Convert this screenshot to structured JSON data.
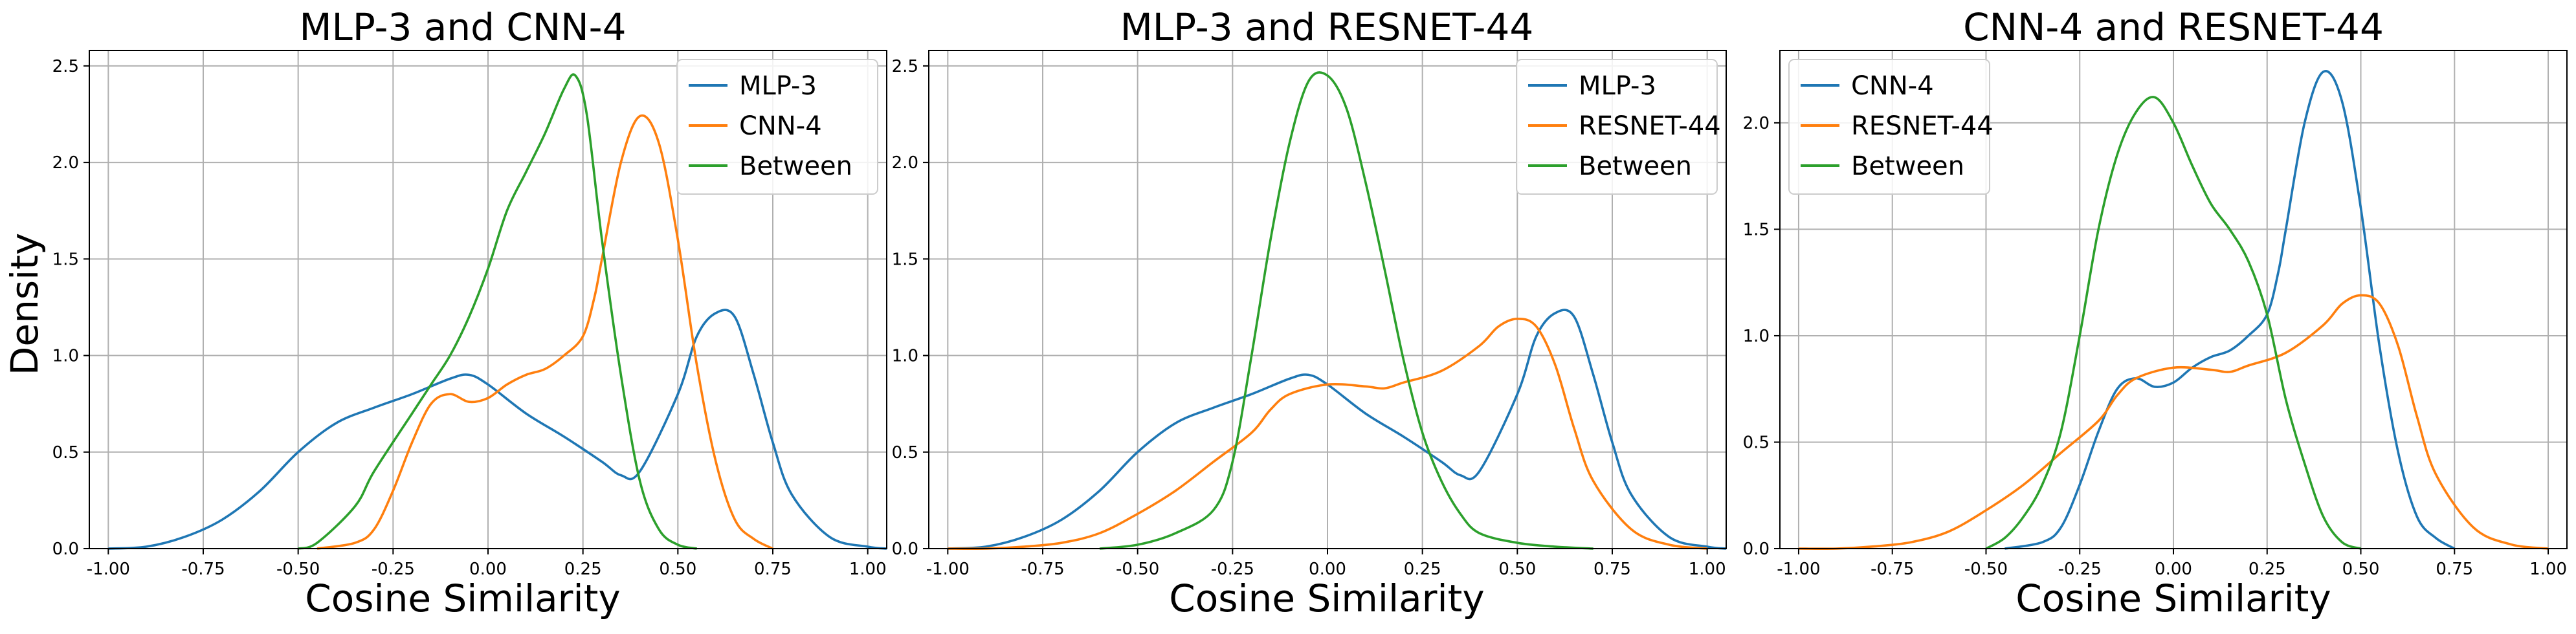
{
  "figure": {
    "ylabel": "Density"
  },
  "chart_data": [
    {
      "type": "line",
      "title": "MLP-3 and CNN-4",
      "xlabel": "Cosine Similarity",
      "ylabel": "Density",
      "xlim": [
        -1.05,
        1.05
      ],
      "ylim": [
        0,
        2.58
      ],
      "xticks": [
        -1.0,
        -0.75,
        -0.5,
        -0.25,
        0.0,
        0.25,
        0.5,
        0.75,
        1.0
      ],
      "xtick_labels": [
        "-1.00",
        "-0.75",
        "-0.50",
        "-0.25",
        "0.00",
        "0.25",
        "0.50",
        "0.75",
        "1.00"
      ],
      "yticks": [
        0,
        0.5,
        1.0,
        1.5,
        2.0,
        2.5
      ],
      "ytick_labels": [
        "0.0",
        "0.5",
        "1.0",
        "1.5",
        "2.0",
        "2.5"
      ],
      "grid": true,
      "legend": "top-right",
      "series": [
        {
          "name": "MLP-3",
          "color": "#1f77b4",
          "x": [
            -1.0,
            -0.9,
            -0.8,
            -0.7,
            -0.6,
            -0.5,
            -0.4,
            -0.3,
            -0.2,
            -0.1,
            -0.05,
            0.0,
            0.1,
            0.2,
            0.3,
            0.35,
            0.4,
            0.5,
            0.55,
            0.6,
            0.65,
            0.7,
            0.75,
            0.8,
            0.9,
            1.0,
            1.05
          ],
          "y": [
            0.0,
            0.01,
            0.06,
            0.15,
            0.3,
            0.5,
            0.65,
            0.73,
            0.8,
            0.88,
            0.9,
            0.85,
            0.7,
            0.58,
            0.45,
            0.38,
            0.4,
            0.8,
            1.1,
            1.22,
            1.2,
            0.9,
            0.55,
            0.28,
            0.06,
            0.01,
            0.0
          ]
        },
        {
          "name": "CNN-4",
          "color": "#ff7f0e",
          "x": [
            -0.45,
            -0.35,
            -0.3,
            -0.25,
            -0.2,
            -0.15,
            -0.1,
            -0.05,
            0.0,
            0.05,
            0.1,
            0.15,
            0.2,
            0.25,
            0.28,
            0.3,
            0.35,
            0.4,
            0.45,
            0.5,
            0.55,
            0.6,
            0.65,
            0.7,
            0.75
          ],
          "y": [
            0.0,
            0.03,
            0.1,
            0.3,
            0.55,
            0.75,
            0.8,
            0.76,
            0.78,
            0.85,
            0.9,
            0.93,
            1.0,
            1.1,
            1.3,
            1.5,
            2.0,
            2.24,
            2.1,
            1.6,
            0.95,
            0.45,
            0.15,
            0.05,
            0.0
          ]
        },
        {
          "name": "Between",
          "color": "#2ca02c",
          "x": [
            -0.5,
            -0.45,
            -0.35,
            -0.3,
            -0.2,
            -0.15,
            -0.1,
            -0.05,
            0.0,
            0.05,
            0.1,
            0.15,
            0.2,
            0.23,
            0.26,
            0.3,
            0.35,
            0.4,
            0.45,
            0.5,
            0.55
          ],
          "y": [
            0.0,
            0.03,
            0.22,
            0.4,
            0.7,
            0.85,
            1.0,
            1.2,
            1.45,
            1.75,
            1.95,
            2.15,
            2.38,
            2.45,
            2.25,
            1.6,
            0.9,
            0.35,
            0.1,
            0.02,
            0.0
          ]
        }
      ]
    },
    {
      "type": "line",
      "title": "MLP-3 and RESNET-44",
      "xlabel": "Cosine Similarity",
      "ylabel": "",
      "xlim": [
        -1.05,
        1.05
      ],
      "ylim": [
        0,
        2.58
      ],
      "xticks": [
        -1.0,
        -0.75,
        -0.5,
        -0.25,
        0.0,
        0.25,
        0.5,
        0.75,
        1.0
      ],
      "xtick_labels": [
        "-1.00",
        "-0.75",
        "-0.50",
        "-0.25",
        "0.00",
        "0.25",
        "0.50",
        "0.75",
        "1.00"
      ],
      "yticks": [
        0,
        0.5,
        1.0,
        1.5,
        2.0,
        2.5
      ],
      "ytick_labels": [
        "0.0",
        "0.5",
        "1.0",
        "1.5",
        "2.0",
        "2.5"
      ],
      "grid": true,
      "legend": "top-right",
      "series": [
        {
          "name": "MLP-3",
          "color": "#1f77b4",
          "x": [
            -1.0,
            -0.9,
            -0.8,
            -0.7,
            -0.6,
            -0.5,
            -0.4,
            -0.3,
            -0.2,
            -0.1,
            -0.05,
            0.0,
            0.1,
            0.2,
            0.3,
            0.35,
            0.4,
            0.5,
            0.55,
            0.6,
            0.65,
            0.7,
            0.75,
            0.8,
            0.9,
            1.0,
            1.05
          ],
          "y": [
            0.0,
            0.01,
            0.06,
            0.15,
            0.3,
            0.5,
            0.65,
            0.73,
            0.8,
            0.88,
            0.9,
            0.85,
            0.7,
            0.58,
            0.45,
            0.38,
            0.4,
            0.8,
            1.1,
            1.22,
            1.2,
            0.9,
            0.55,
            0.28,
            0.06,
            0.01,
            0.0
          ]
        },
        {
          "name": "RESNET-44",
          "color": "#ff7f0e",
          "x": [
            -1.0,
            -0.9,
            -0.8,
            -0.7,
            -0.6,
            -0.5,
            -0.4,
            -0.3,
            -0.2,
            -0.15,
            -0.1,
            0.0,
            0.1,
            0.15,
            0.2,
            0.3,
            0.4,
            0.45,
            0.5,
            0.55,
            0.6,
            0.65,
            0.7,
            0.8,
            0.9,
            1.0
          ],
          "y": [
            0.0,
            0.0,
            0.01,
            0.03,
            0.08,
            0.18,
            0.3,
            0.45,
            0.6,
            0.72,
            0.8,
            0.85,
            0.84,
            0.83,
            0.86,
            0.92,
            1.05,
            1.15,
            1.19,
            1.15,
            0.95,
            0.62,
            0.35,
            0.1,
            0.02,
            0.0
          ]
        },
        {
          "name": "Between",
          "color": "#2ca02c",
          "x": [
            -0.6,
            -0.5,
            -0.4,
            -0.3,
            -0.25,
            -0.2,
            -0.15,
            -0.1,
            -0.05,
            0.0,
            0.05,
            0.1,
            0.15,
            0.2,
            0.25,
            0.3,
            0.35,
            0.4,
            0.5,
            0.6,
            0.7
          ],
          "y": [
            0.0,
            0.02,
            0.08,
            0.2,
            0.45,
            1.0,
            1.6,
            2.1,
            2.42,
            2.45,
            2.28,
            1.9,
            1.45,
            0.98,
            0.6,
            0.35,
            0.18,
            0.08,
            0.03,
            0.01,
            0.0
          ]
        }
      ]
    },
    {
      "type": "line",
      "title": "CNN-4 and RESNET-44",
      "xlabel": "Cosine Similarity",
      "ylabel": "",
      "xlim": [
        -1.05,
        1.05
      ],
      "ylim": [
        0,
        2.34
      ],
      "xticks": [
        -1.0,
        -0.75,
        -0.5,
        -0.25,
        0.0,
        0.25,
        0.5,
        0.75,
        1.0
      ],
      "xtick_labels": [
        "-1.00",
        "-0.75",
        "-0.50",
        "-0.25",
        "0.00",
        "0.25",
        "0.50",
        "0.75",
        "1.00"
      ],
      "yticks": [
        0,
        0.5,
        1.0,
        1.5,
        2.0
      ],
      "ytick_labels": [
        "0.0",
        "0.5",
        "1.0",
        "1.5",
        "2.0"
      ],
      "grid": true,
      "legend": "top-left",
      "series": [
        {
          "name": "CNN-4",
          "color": "#1f77b4",
          "x": [
            -0.45,
            -0.35,
            -0.3,
            -0.25,
            -0.2,
            -0.15,
            -0.1,
            -0.05,
            0.0,
            0.05,
            0.1,
            0.15,
            0.2,
            0.25,
            0.28,
            0.3,
            0.35,
            0.4,
            0.45,
            0.5,
            0.55,
            0.6,
            0.65,
            0.7,
            0.75
          ],
          "y": [
            0.0,
            0.03,
            0.1,
            0.3,
            0.55,
            0.75,
            0.8,
            0.76,
            0.78,
            0.85,
            0.9,
            0.93,
            1.0,
            1.1,
            1.3,
            1.5,
            2.0,
            2.24,
            2.1,
            1.6,
            0.95,
            0.45,
            0.15,
            0.05,
            0.0
          ]
        },
        {
          "name": "RESNET-44",
          "color": "#ff7f0e",
          "x": [
            -1.0,
            -0.9,
            -0.8,
            -0.7,
            -0.6,
            -0.5,
            -0.4,
            -0.3,
            -0.2,
            -0.15,
            -0.1,
            0.0,
            0.1,
            0.15,
            0.2,
            0.3,
            0.4,
            0.45,
            0.5,
            0.55,
            0.6,
            0.65,
            0.7,
            0.8,
            0.9,
            1.0
          ],
          "y": [
            0.0,
            0.0,
            0.01,
            0.03,
            0.08,
            0.18,
            0.3,
            0.45,
            0.6,
            0.72,
            0.8,
            0.85,
            0.84,
            0.83,
            0.86,
            0.92,
            1.05,
            1.15,
            1.19,
            1.15,
            0.95,
            0.62,
            0.35,
            0.1,
            0.02,
            0.0
          ]
        },
        {
          "name": "Between",
          "color": "#2ca02c",
          "x": [
            -0.5,
            -0.45,
            -0.4,
            -0.35,
            -0.3,
            -0.25,
            -0.2,
            -0.15,
            -0.1,
            -0.05,
            0.0,
            0.05,
            0.1,
            0.15,
            0.2,
            0.25,
            0.3,
            0.35,
            0.4,
            0.45,
            0.5
          ],
          "y": [
            0.0,
            0.05,
            0.15,
            0.3,
            0.55,
            1.0,
            1.5,
            1.85,
            2.05,
            2.12,
            2.0,
            1.8,
            1.62,
            1.5,
            1.35,
            1.1,
            0.7,
            0.4,
            0.15,
            0.03,
            0.0
          ]
        }
      ]
    }
  ]
}
